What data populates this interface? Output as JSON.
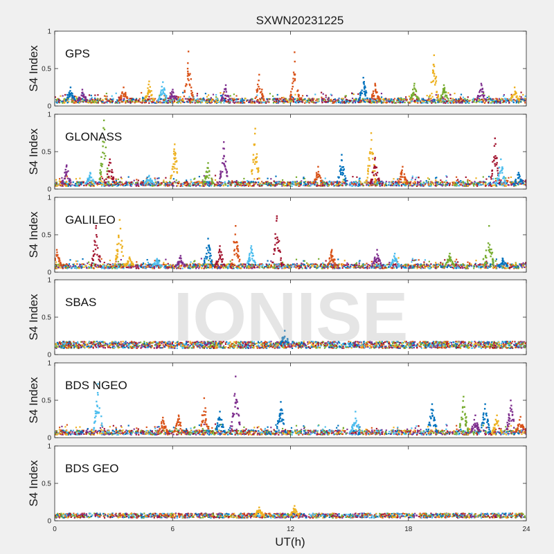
{
  "figure": {
    "title": "SXWN20231225",
    "xlabel": "UT(h)",
    "ylabel": "S4 Index",
    "watermark": "IONISE"
  },
  "chart_data": {
    "type": "scatter",
    "title": "SXWN20231225",
    "xlabel": "UT(h)",
    "ylabel": "S4 Index",
    "xlim": [
      0,
      24
    ],
    "ylim": [
      0,
      1
    ],
    "x_ticks": [
      "0",
      "6",
      "12",
      "18",
      "24"
    ],
    "y_ticks": [
      "0",
      "0.5",
      "1"
    ],
    "grid": false,
    "colors": [
      "#0072BD",
      "#D95319",
      "#EDB120",
      "#7E2F8E",
      "#77AC30",
      "#4DBEEE",
      "#A2142F"
    ],
    "panels": [
      {
        "system": "GPS",
        "baseline": 0.07,
        "peaks": [
          [
            0.8,
            0.25,
            0
          ],
          [
            1.4,
            0.22,
            3
          ],
          [
            3.5,
            0.25,
            1
          ],
          [
            4.8,
            0.33,
            2
          ],
          [
            5.5,
            0.32,
            5
          ],
          [
            6.0,
            0.22,
            3
          ],
          [
            6.8,
            0.73,
            1
          ],
          [
            8.7,
            0.28,
            3
          ],
          [
            10.4,
            0.42,
            1
          ],
          [
            12.2,
            0.72,
            1
          ],
          [
            15.7,
            0.38,
            0
          ],
          [
            16.3,
            0.3,
            1
          ],
          [
            18.3,
            0.3,
            4
          ],
          [
            19.3,
            0.68,
            2
          ],
          [
            19.8,
            0.28,
            4
          ],
          [
            21.7,
            0.3,
            3
          ],
          [
            23.4,
            0.25,
            2
          ]
        ]
      },
      {
        "system": "GLONASS",
        "baseline": 0.07,
        "peaks": [
          [
            0.6,
            0.32,
            3
          ],
          [
            1.8,
            0.22,
            5
          ],
          [
            2.5,
            0.92,
            4
          ],
          [
            2.8,
            0.4,
            6
          ],
          [
            4.8,
            0.18,
            5
          ],
          [
            6.1,
            0.6,
            2
          ],
          [
            7.8,
            0.35,
            4
          ],
          [
            8.6,
            0.63,
            3
          ],
          [
            10.2,
            0.81,
            2
          ],
          [
            13.4,
            0.3,
            1
          ],
          [
            14.6,
            0.46,
            0
          ],
          [
            16.1,
            0.75,
            2
          ],
          [
            16.3,
            0.42,
            6
          ],
          [
            17.7,
            0.3,
            1
          ],
          [
            22.4,
            0.68,
            6
          ],
          [
            22.7,
            0.4,
            5
          ],
          [
            23.6,
            0.22,
            0
          ]
        ]
      },
      {
        "system": "GALILEO",
        "baseline": 0.08,
        "peaks": [
          [
            0.1,
            0.3,
            1
          ],
          [
            2.1,
            0.62,
            6
          ],
          [
            3.3,
            0.7,
            2
          ],
          [
            3.8,
            0.2,
            2
          ],
          [
            5.2,
            0.18,
            5
          ],
          [
            6.4,
            0.22,
            3
          ],
          [
            7.8,
            0.45,
            0
          ],
          [
            8.4,
            0.35,
            6
          ],
          [
            9.2,
            0.62,
            1
          ],
          [
            10.0,
            0.35,
            5
          ],
          [
            11.3,
            0.75,
            6
          ],
          [
            14.1,
            0.3,
            1
          ],
          [
            16.4,
            0.3,
            3
          ],
          [
            17.3,
            0.25,
            5
          ],
          [
            20.1,
            0.25,
            4
          ],
          [
            22.1,
            0.62,
            4
          ],
          [
            22.8,
            0.18,
            0
          ]
        ]
      },
      {
        "system": "SBAS",
        "baseline": 0.13,
        "peaks": [
          [
            11.7,
            0.32,
            0
          ]
        ]
      },
      {
        "system": "BDS NGEO",
        "baseline": 0.07,
        "peaks": [
          [
            2.2,
            0.72,
            5
          ],
          [
            5.5,
            0.27,
            1
          ],
          [
            6.3,
            0.3,
            1
          ],
          [
            7.6,
            0.53,
            1
          ],
          [
            8.4,
            0.35,
            0
          ],
          [
            9.2,
            0.82,
            3
          ],
          [
            11.5,
            0.48,
            0
          ],
          [
            15.3,
            0.35,
            5
          ],
          [
            19.2,
            0.45,
            0
          ],
          [
            20.8,
            0.55,
            4
          ],
          [
            21.4,
            0.3,
            3
          ],
          [
            21.9,
            0.45,
            0
          ],
          [
            22.5,
            0.3,
            2
          ],
          [
            23.2,
            0.5,
            3
          ],
          [
            23.7,
            0.28,
            1
          ]
        ]
      },
      {
        "system": "BDS GEO",
        "baseline": 0.07,
        "peaks": [
          [
            10.4,
            0.18,
            2
          ],
          [
            12.2,
            0.2,
            2
          ]
        ]
      }
    ]
  }
}
